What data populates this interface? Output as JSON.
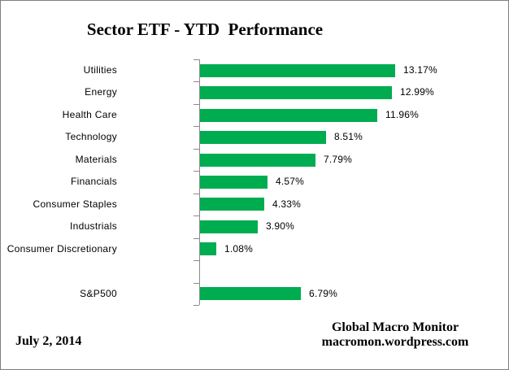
{
  "title": "Sector ETF - YTD  Performance",
  "chart_data": {
    "type": "bar",
    "orientation": "horizontal",
    "title": "Sector ETF - YTD  Performance",
    "xlabel": "",
    "ylabel": "",
    "xlim": [
      0,
      20
    ],
    "grid": false,
    "legend": false,
    "bar_color": "#00AC50",
    "axis_color": "#8A8A8A",
    "categories": [
      "Utilities",
      "Energy",
      "Health Care",
      "Technology",
      "Materials",
      "Financials",
      "Consumer Staples",
      "Industrials",
      "Consumer Discretionary",
      "",
      "S&P500"
    ],
    "values": [
      13.17,
      12.99,
      11.96,
      8.51,
      7.79,
      4.57,
      4.33,
      3.9,
      1.08,
      null,
      6.79
    ],
    "value_labels": [
      "13.17%",
      "12.99%",
      "11.96%",
      "8.51%",
      "7.79%",
      "4.57%",
      "4.33%",
      "3.90%",
      "1.08%",
      "",
      "6.79%"
    ]
  },
  "footer": {
    "date": "July 2, 2014",
    "source_name": "Global Macro Monitor",
    "source_url": "macromon.wordpress.com"
  }
}
